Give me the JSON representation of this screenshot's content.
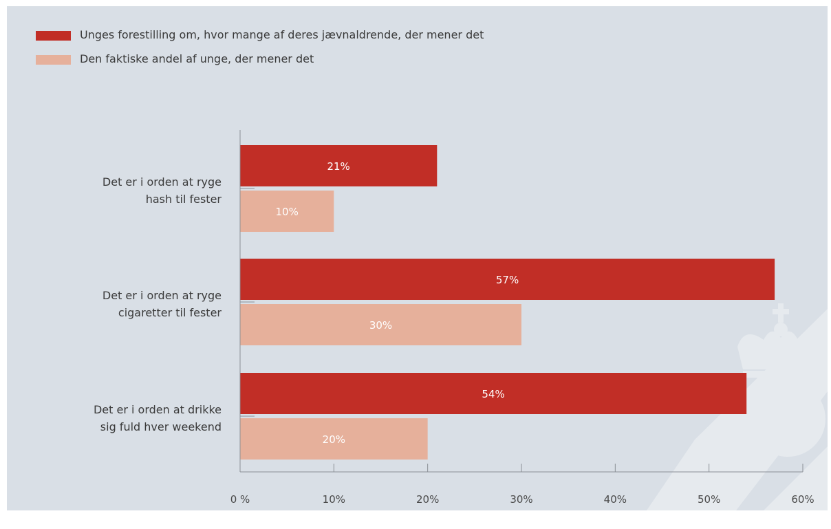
{
  "chart_data": {
    "type": "bar",
    "orientation": "horizontal",
    "categories": [
      [
        "Det er i orden at ryge",
        "hash til fester"
      ],
      [
        "Det er i orden at ryge",
        "cigaretter til fester"
      ],
      [
        "Det er i orden at drikke",
        "sig fuld hver weekend"
      ]
    ],
    "series": [
      {
        "name": "Unges forestilling om, hvor mange af deres jævnaldrende, der mener det",
        "color": "#c12e26",
        "values": [
          21,
          57,
          54
        ],
        "labels": [
          "21%",
          "57%",
          "54%"
        ]
      },
      {
        "name": "Den faktiske andel af unge, der mener det",
        "color": "#e6b09b",
        "values": [
          10,
          30,
          20
        ],
        "labels": [
          "10%",
          "30%",
          "20%"
        ]
      }
    ],
    "xlim": [
      0,
      60
    ],
    "xticks": [
      0,
      10,
      20,
      30,
      40,
      50,
      60
    ],
    "xtick_labels": [
      "0 %",
      "10%",
      "20%",
      "30%",
      "40%",
      "50%",
      "60%"
    ],
    "legend_position": "top-left",
    "grid": false
  }
}
